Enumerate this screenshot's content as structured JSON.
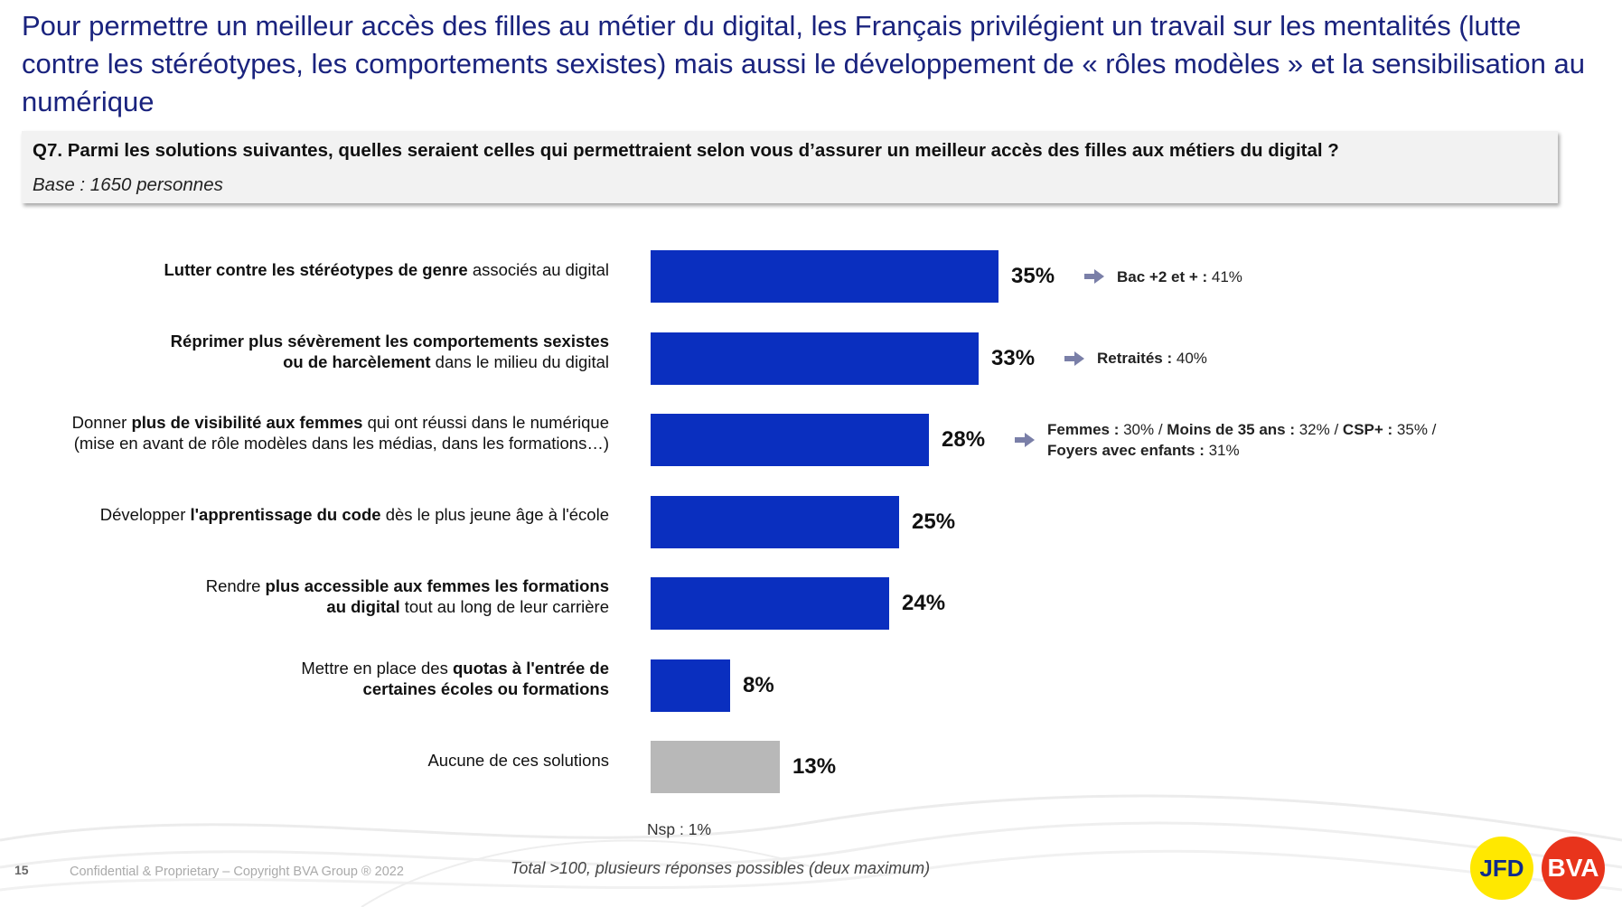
{
  "slide": {
    "title": "Pour permettre un meilleur accès des filles au métier du digital, les Français privilégient un travail sur les mentalités (lutte contre les stéréotypes, les comportements sexistes) mais aussi le développement de « rôles modèles » et la sensibilisation au numérique",
    "question": "Q7. Parmi les solutions suivantes, quelles seraient celles qui permettraient selon vous d’assurer un meilleur accès des filles aux métiers du digital ?",
    "base": "Base : 1650 personnes",
    "nsp": "Nsp : 1%",
    "note": "Total >100, plusieurs réponses possibles (deux maximum)",
    "page_number": "15",
    "copyright": "Confidential & Proprietary – Copyright BVA Group ®  2022",
    "logo_left": "JFD",
    "logo_right": "BVA"
  },
  "colors": {
    "bar_primary": "#0a2fbf",
    "bar_none": "#b8b8b8",
    "title": "#1a237e",
    "arrow": "#7a7fa8",
    "logo_jfd_bg": "#ffe800",
    "logo_bva_bg": "#e8341c"
  },
  "chart_data": {
    "type": "bar",
    "orientation": "horizontal",
    "xlim": [
      0,
      35
    ],
    "grid": false,
    "categories": [
      "Lutter contre les stéréotypes de genre associés au digital",
      "Réprimer plus sévèrement les comportements sexistes ou de harcèlement dans le milieu du digital",
      "Donner plus de visibilité aux femmes qui ont réussi dans le numérique (mise en avant de rôle modèles dans les médias, dans les formations…)",
      "Développer l'apprentissage du code dès le plus jeune âge à l'école",
      "Rendre plus accessible aux femmes les formations au digital tout au long de leur carrière",
      "Mettre en place des quotas à l'entrée de certaines écoles ou formations",
      "Aucune de ces solutions"
    ],
    "values": [
      35,
      33,
      28,
      25,
      24,
      8,
      13
    ],
    "value_labels": [
      "35%",
      "33%",
      "28%",
      "25%",
      "24%",
      "8%",
      "13%"
    ],
    "category_styles": [
      "primary",
      "primary",
      "primary",
      "primary",
      "primary",
      "primary",
      "none"
    ],
    "label_lines": [
      [
        [
          {
            "t": "Lutter contre les stéréotypes de genre",
            "b": true
          },
          {
            "t": " associés au digital",
            "b": false
          }
        ]
      ],
      [
        [
          {
            "t": "Réprimer plus sévèrement les comportements sexistes",
            "b": true
          }
        ],
        [
          {
            "t": "ou de harcèlement",
            "b": true
          },
          {
            "t": " dans le milieu du digital",
            "b": false
          }
        ]
      ],
      [
        [
          {
            "t": "Donner ",
            "b": false
          },
          {
            "t": "plus de visibilité aux femmes",
            "b": true
          },
          {
            "t": " qui ont réussi dans le numérique",
            "b": false
          }
        ],
        [
          {
            "t": "(mise en avant de rôle modèles dans les médias, dans les formations…)",
            "b": false
          }
        ]
      ],
      [
        [
          {
            "t": "Développer ",
            "b": false
          },
          {
            "t": "l'apprentissage du code",
            "b": true
          },
          {
            "t": " dès le plus jeune âge à l'école",
            "b": false
          }
        ]
      ],
      [
        [
          {
            "t": "Rendre ",
            "b": false
          },
          {
            "t": "plus accessible aux femmes les formations",
            "b": true
          }
        ],
        [
          {
            "t": "au digital",
            "b": true
          },
          {
            "t": " tout au long de leur carrière",
            "b": false
          }
        ]
      ],
      [
        [
          {
            "t": "Mettre en place des ",
            "b": false
          },
          {
            "t": "quotas à l'entrée de",
            "b": true
          }
        ],
        [
          {
            "t": "certaines écoles ou formations",
            "b": true
          }
        ]
      ],
      [
        [
          {
            "t": "Aucune de ces solutions",
            "b": false
          }
        ]
      ]
    ],
    "annotations": [
      {
        "index": 0,
        "lines": [
          [
            {
              "t": "Bac +2 et + :",
              "b": true
            },
            {
              "t": " 41%",
              "b": false
            }
          ]
        ]
      },
      {
        "index": 1,
        "lines": [
          [
            {
              "t": "Retraités :",
              "b": true
            },
            {
              "t": " 40%",
              "b": false
            }
          ]
        ]
      },
      {
        "index": 2,
        "lines": [
          [
            {
              "t": "Femmes :",
              "b": true
            },
            {
              "t": " 30% / ",
              "b": false
            },
            {
              "t": "Moins de 35 ans :",
              "b": true
            },
            {
              "t": " 32% / ",
              "b": false
            },
            {
              "t": "CSP+ :",
              "b": true
            },
            {
              "t": " 35% /",
              "b": false
            }
          ],
          [
            {
              "t": "Foyers avec enfants :",
              "b": true
            },
            {
              "t": " 31%",
              "b": false
            }
          ]
        ]
      }
    ]
  }
}
